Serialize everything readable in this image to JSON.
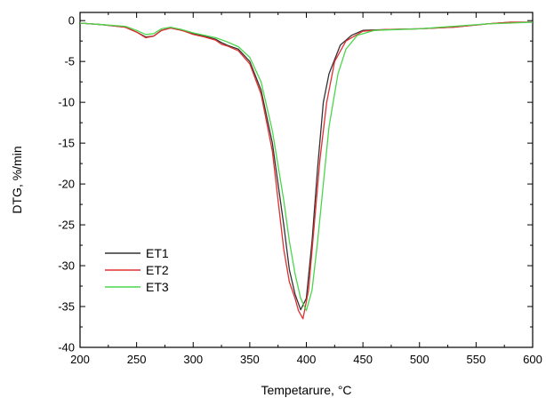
{
  "chart_data": {
    "type": "line",
    "xlabel": "Tempetarure, °C",
    "ylabel": "DTG, %/min",
    "xlim": [
      200,
      600
    ],
    "ylim": [
      -40,
      1
    ],
    "x_ticks": [
      200,
      250,
      300,
      350,
      400,
      450,
      500,
      550,
      600
    ],
    "y_ticks": [
      0,
      -5,
      -10,
      -15,
      -20,
      -25,
      -30,
      -35,
      -40
    ],
    "grid": false,
    "legend_position": "lower-left",
    "series": [
      {
        "name": "ET1",
        "color": "#333333",
        "points": [
          [
            200,
            -0.3
          ],
          [
            220,
            -0.5
          ],
          [
            240,
            -0.8
          ],
          [
            250,
            -1.4
          ],
          [
            258,
            -2.0
          ],
          [
            265,
            -1.9
          ],
          [
            272,
            -1.2
          ],
          [
            280,
            -0.9
          ],
          [
            290,
            -1.2
          ],
          [
            300,
            -1.6
          ],
          [
            310,
            -1.9
          ],
          [
            320,
            -2.3
          ],
          [
            325,
            -2.7
          ],
          [
            330,
            -3.0
          ],
          [
            340,
            -3.5
          ],
          [
            350,
            -5.0
          ],
          [
            360,
            -8.5
          ],
          [
            370,
            -15.0
          ],
          [
            380,
            -25.0
          ],
          [
            385,
            -30.5
          ],
          [
            390,
            -33.5
          ],
          [
            395,
            -35.4
          ],
          [
            400,
            -34.0
          ],
          [
            405,
            -27.0
          ],
          [
            410,
            -18.0
          ],
          [
            415,
            -10.0
          ],
          [
            420,
            -6.5
          ],
          [
            430,
            -3.0
          ],
          [
            440,
            -1.8
          ],
          [
            450,
            -1.2
          ],
          [
            470,
            -1.1
          ],
          [
            500,
            -1.0
          ],
          [
            530,
            -0.8
          ],
          [
            560,
            -0.4
          ],
          [
            580,
            -0.2
          ],
          [
            600,
            -0.2
          ]
        ]
      },
      {
        "name": "ET2",
        "color": "#e03030",
        "points": [
          [
            200,
            -0.3
          ],
          [
            220,
            -0.5
          ],
          [
            240,
            -0.8
          ],
          [
            250,
            -1.4
          ],
          [
            258,
            -2.1
          ],
          [
            265,
            -1.9
          ],
          [
            272,
            -1.2
          ],
          [
            280,
            -0.9
          ],
          [
            290,
            -1.2
          ],
          [
            300,
            -1.7
          ],
          [
            310,
            -2.0
          ],
          [
            320,
            -2.4
          ],
          [
            325,
            -2.9
          ],
          [
            330,
            -3.1
          ],
          [
            340,
            -3.7
          ],
          [
            350,
            -5.3
          ],
          [
            360,
            -9.0
          ],
          [
            370,
            -16.0
          ],
          [
            375,
            -22.0
          ],
          [
            380,
            -28.0
          ],
          [
            385,
            -32.0
          ],
          [
            390,
            -34.0
          ],
          [
            393,
            -35.5
          ],
          [
            397,
            -36.5
          ],
          [
            402,
            -33.0
          ],
          [
            407,
            -25.0
          ],
          [
            412,
            -17.0
          ],
          [
            418,
            -10.0
          ],
          [
            425,
            -5.0
          ],
          [
            435,
            -2.5
          ],
          [
            450,
            -1.3
          ],
          [
            470,
            -1.1
          ],
          [
            500,
            -1.0
          ],
          [
            530,
            -0.8
          ],
          [
            560,
            -0.4
          ],
          [
            580,
            -0.2
          ],
          [
            600,
            -0.2
          ]
        ]
      },
      {
        "name": "ET3",
        "color": "#4cd64c",
        "points": [
          [
            200,
            -0.3
          ],
          [
            220,
            -0.5
          ],
          [
            240,
            -0.7
          ],
          [
            250,
            -1.2
          ],
          [
            258,
            -1.7
          ],
          [
            265,
            -1.6
          ],
          [
            272,
            -1.0
          ],
          [
            280,
            -0.8
          ],
          [
            290,
            -1.1
          ],
          [
            300,
            -1.5
          ],
          [
            310,
            -1.8
          ],
          [
            320,
            -2.1
          ],
          [
            330,
            -2.6
          ],
          [
            340,
            -3.2
          ],
          [
            350,
            -4.5
          ],
          [
            360,
            -7.5
          ],
          [
            370,
            -13.5
          ],
          [
            380,
            -22.0
          ],
          [
            385,
            -27.0
          ],
          [
            390,
            -31.0
          ],
          [
            395,
            -34.0
          ],
          [
            400,
            -35.5
          ],
          [
            405,
            -33.0
          ],
          [
            410,
            -27.0
          ],
          [
            415,
            -20.0
          ],
          [
            420,
            -13.0
          ],
          [
            428,
            -6.5
          ],
          [
            435,
            -3.5
          ],
          [
            445,
            -1.8
          ],
          [
            460,
            -1.2
          ],
          [
            480,
            -1.1
          ],
          [
            500,
            -1.0
          ],
          [
            530,
            -0.7
          ],
          [
            560,
            -0.4
          ],
          [
            580,
            -0.3
          ],
          [
            600,
            -0.2
          ]
        ]
      }
    ]
  }
}
